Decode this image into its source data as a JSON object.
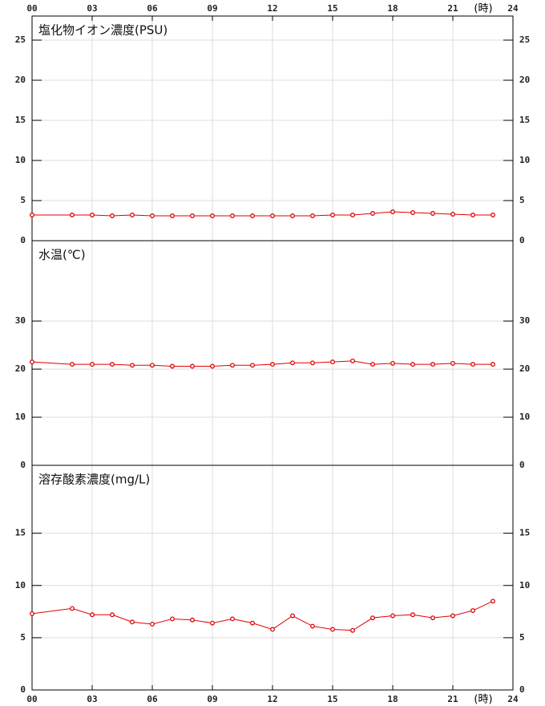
{
  "chart_data": [
    {
      "type": "line",
      "title": "塩化物イオン濃度(PSU)",
      "xlabel": "(時)",
      "xlim": [
        0,
        24
      ],
      "xticks": [
        {
          "value": 0,
          "label": "00"
        },
        {
          "value": 3,
          "label": "03"
        },
        {
          "value": 6,
          "label": "06"
        },
        {
          "value": 9,
          "label": "09"
        },
        {
          "value": 12,
          "label": "12"
        },
        {
          "value": 15,
          "label": "15"
        },
        {
          "value": 18,
          "label": "18"
        },
        {
          "value": 21,
          "label": "21"
        },
        24
      ],
      "x": [
        0,
        2,
        3,
        4,
        5,
        6,
        7,
        8,
        9,
        10,
        11,
        12,
        13,
        14,
        15,
        16,
        17,
        18,
        19,
        20,
        21,
        22,
        23
      ],
      "values": [
        3.2,
        3.2,
        3.2,
        3.1,
        3.2,
        3.1,
        3.1,
        3.1,
        3.1,
        3.1,
        3.1,
        3.1,
        3.1,
        3.1,
        3.2,
        3.2,
        3.4,
        3.6,
        3.5,
        3.4,
        3.3,
        3.2,
        3.2
      ],
      "color": "#e00000",
      "ylim": [
        0,
        28
      ],
      "yticks": [
        0,
        5,
        10,
        15,
        20,
        25
      ],
      "grid": true
    },
    {
      "type": "line",
      "title": "水温(℃)",
      "xlim": [
        0,
        24
      ],
      "x": [
        0,
        2,
        3,
        4,
        5,
        6,
        7,
        8,
        9,
        10,
        11,
        12,
        13,
        14,
        15,
        16,
        17,
        18,
        19,
        20,
        21,
        22,
        23
      ],
      "values": [
        21.5,
        21.0,
        21.0,
        21.0,
        20.8,
        20.8,
        20.6,
        20.6,
        20.6,
        20.8,
        20.8,
        21.0,
        21.3,
        21.3,
        21.5,
        21.7,
        21.0,
        21.2,
        21.0,
        21.0,
        21.2,
        21.0,
        21.0
      ],
      "color": "#e00000",
      "ylim": [
        0,
        46.7
      ],
      "yticks": [
        0,
        10,
        20,
        30
      ],
      "grid": true
    },
    {
      "type": "line",
      "title": "溶存酸素濃度(mg/L)",
      "xlabel": "(時)",
      "xlim": [
        0,
        24
      ],
      "xticks": [
        {
          "value": 0,
          "label": "00"
        },
        {
          "value": 3,
          "label": "03"
        },
        {
          "value": 6,
          "label": "06"
        },
        {
          "value": 9,
          "label": "09"
        },
        {
          "value": 12,
          "label": "12"
        },
        {
          "value": 15,
          "label": "15"
        },
        {
          "value": 18,
          "label": "18"
        },
        {
          "value": 21,
          "label": "21"
        },
        24
      ],
      "x": [
        0,
        2,
        3,
        4,
        5,
        6,
        7,
        8,
        9,
        10,
        11,
        12,
        13,
        14,
        15,
        16,
        17,
        18,
        19,
        20,
        21,
        22,
        23
      ],
      "values": [
        7.3,
        7.8,
        7.2,
        7.2,
        6.5,
        6.3,
        6.8,
        6.7,
        6.4,
        6.8,
        6.4,
        5.8,
        7.1,
        6.1,
        5.8,
        5.7,
        6.9,
        7.1,
        7.2,
        6.9,
        7.1,
        7.6,
        8.5
      ],
      "color": "#e00000",
      "ylim": [
        0,
        21.5
      ],
      "yticks": [
        0,
        5,
        10,
        15
      ],
      "grid": true
    }
  ]
}
